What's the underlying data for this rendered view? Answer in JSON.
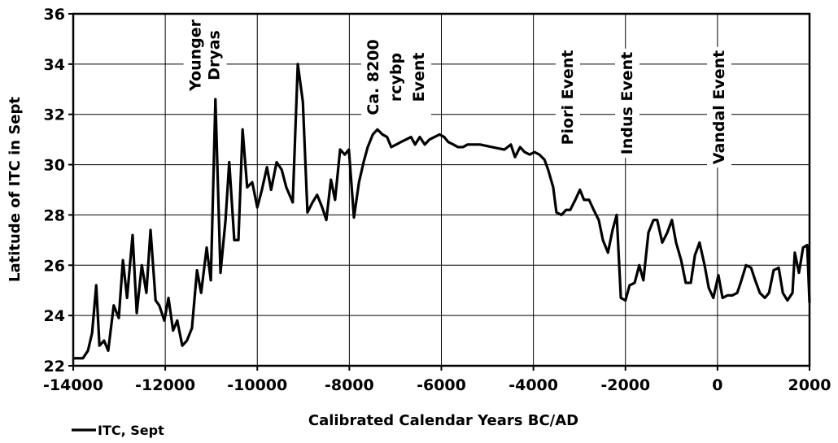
{
  "chart_data": {
    "type": "line",
    "xlabel": "Calibrated Calendar Years BC/AD",
    "ylabel": "Latitude of ITC in Sept",
    "xlim": [
      -14000,
      2000
    ],
    "xticks": [
      -14000,
      -12000,
      -10000,
      -8000,
      -6000,
      -4000,
      -2000,
      0,
      2000
    ],
    "ylim": [
      22,
      36
    ],
    "yticks": [
      22,
      24,
      26,
      28,
      30,
      32,
      34,
      36
    ],
    "grid": true,
    "legend": "bottom-left",
    "annotations": [
      {
        "lines": [
          "Younger",
          "Dryas"
        ]
      },
      {
        "lines": [
          "Ca. 8200",
          "rcybp",
          "Event"
        ]
      },
      {
        "lines": [
          "Piori Event"
        ]
      },
      {
        "lines": [
          "Indus Event"
        ]
      },
      {
        "lines": [
          "Vandal Event"
        ]
      }
    ],
    "x": [
      -14000,
      -13790,
      -13680,
      -13590,
      -13500,
      -13430,
      -13330,
      -13240,
      -13120,
      -13010,
      -12920,
      -12830,
      -12710,
      -12620,
      -12510,
      -12410,
      -12320,
      -12210,
      -12130,
      -12020,
      -11930,
      -11830,
      -11740,
      -11630,
      -11530,
      -11420,
      -11310,
      -11220,
      -11100,
      -11010,
      -10910,
      -10800,
      -10690,
      -10610,
      -10500,
      -10410,
      -10320,
      -10220,
      -10110,
      -10000,
      -9900,
      -9790,
      -9700,
      -9580,
      -9470,
      -9370,
      -9230,
      -9120,
      -9010,
      -8910,
      -8800,
      -8700,
      -8590,
      -8500,
      -8400,
      -8310,
      -8200,
      -8100,
      -8010,
      -7900,
      -7790,
      -7690,
      -7600,
      -7490,
      -7390,
      -7280,
      -7180,
      -7090,
      -6980,
      -6880,
      -6770,
      -6660,
      -6570,
      -6470,
      -6360,
      -6260,
      -6150,
      -6040,
      -5940,
      -5850,
      -5740,
      -5640,
      -5530,
      -5430,
      -5160,
      -4900,
      -4630,
      -4490,
      -4400,
      -4290,
      -4190,
      -4080,
      -3980,
      -3870,
      -3760,
      -3680,
      -3570,
      -3500,
      -3390,
      -3290,
      -3200,
      -3090,
      -2990,
      -2900,
      -2790,
      -2690,
      -2580,
      -2490,
      -2380,
      -2280,
      -2190,
      -2100,
      -2000,
      -1910,
      -1800,
      -1700,
      -1610,
      -1500,
      -1390,
      -1310,
      -1200,
      -1090,
      -990,
      -900,
      -790,
      -690,
      -580,
      -490,
      -390,
      -280,
      -190,
      -90,
      20,
      110,
      215,
      320,
      430,
      520,
      620,
      730,
      820,
      920,
      1030,
      1120,
      1220,
      1330,
      1420,
      1520,
      1630,
      1680,
      1770,
      1860,
      1950,
      2000
    ],
    "series": [
      {
        "name": "ITC, Sept",
        "color": "#000000",
        "values": [
          22.3,
          22.3,
          22.6,
          23.3,
          25.2,
          22.8,
          23.0,
          22.6,
          24.4,
          23.9,
          26.2,
          24.7,
          27.2,
          24.1,
          26.0,
          24.9,
          27.4,
          24.6,
          24.4,
          23.8,
          24.7,
          23.4,
          23.8,
          22.8,
          23.0,
          23.5,
          25.8,
          24.9,
          26.7,
          25.4,
          32.6,
          25.7,
          27.8,
          30.1,
          27.0,
          27.0,
          31.4,
          29.1,
          29.3,
          28.3,
          29.0,
          29.9,
          29.0,
          30.1,
          29.8,
          29.1,
          28.5,
          34.0,
          32.5,
          28.1,
          28.5,
          28.8,
          28.3,
          27.8,
          29.4,
          28.6,
          30.6,
          30.4,
          30.6,
          27.9,
          29.3,
          30.1,
          30.7,
          31.2,
          31.4,
          31.2,
          31.1,
          30.7,
          30.8,
          30.9,
          31.0,
          31.1,
          30.8,
          31.1,
          30.8,
          31.0,
          31.1,
          31.2,
          31.1,
          30.9,
          30.8,
          30.7,
          30.7,
          30.8,
          30.8,
          30.7,
          30.6,
          30.8,
          30.3,
          30.7,
          30.5,
          30.4,
          30.5,
          30.4,
          30.2,
          29.8,
          29.1,
          28.1,
          28.0,
          28.2,
          28.2,
          28.6,
          29.0,
          28.6,
          28.6,
          28.2,
          27.8,
          27.0,
          26.5,
          27.4,
          28.0,
          24.7,
          24.6,
          25.2,
          25.3,
          26.0,
          25.4,
          27.3,
          27.8,
          27.8,
          26.9,
          27.3,
          27.8,
          26.9,
          26.2,
          25.3,
          25.3,
          26.4,
          26.9,
          26.0,
          25.1,
          24.7,
          25.6,
          24.7,
          24.8,
          24.8,
          24.9,
          25.4,
          26.0,
          25.9,
          25.4,
          24.9,
          24.7,
          24.9,
          25.8,
          25.9,
          24.9,
          24.6,
          24.9,
          26.5,
          25.7,
          26.7,
          26.8,
          24.5
        ]
      }
    ]
  }
}
